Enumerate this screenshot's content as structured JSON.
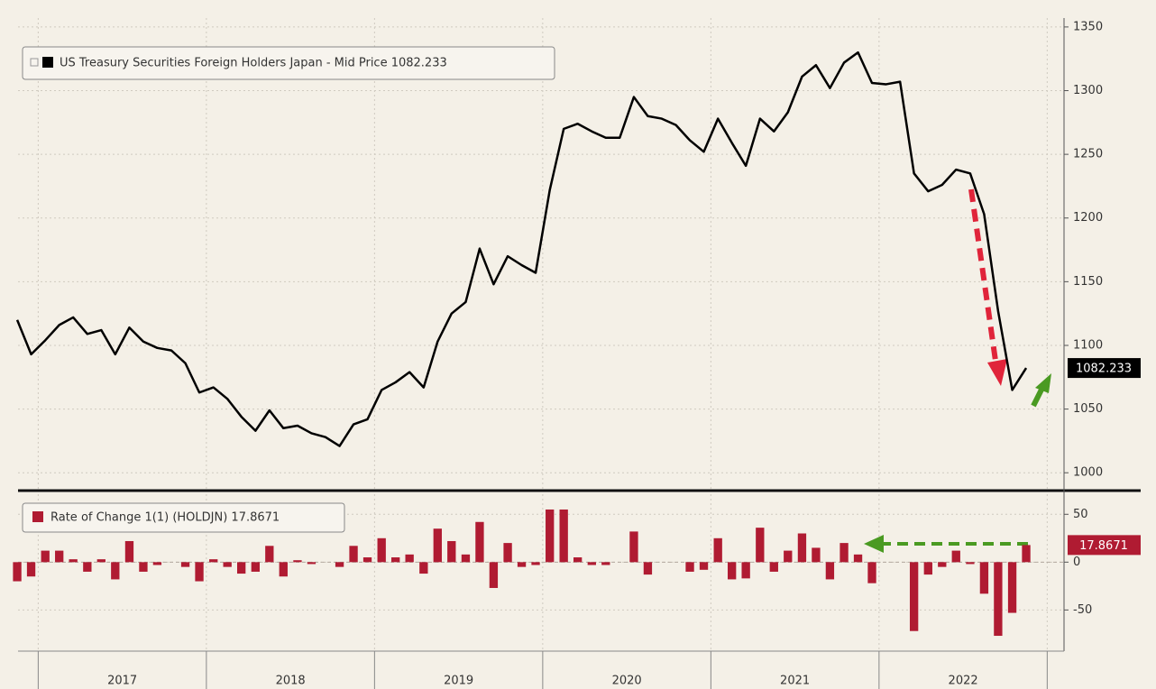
{
  "chart_data": [
    {
      "type": "line",
      "x": [
        2016.875,
        2016.958,
        2017.042,
        2017.125,
        2017.208,
        2017.292,
        2017.375,
        2017.458,
        2017.542,
        2017.625,
        2017.708,
        2017.792,
        2017.875,
        2017.958,
        2018.042,
        2018.125,
        2018.208,
        2018.292,
        2018.375,
        2018.458,
        2018.542,
        2018.625,
        2018.708,
        2018.792,
        2018.875,
        2018.958,
        2019.042,
        2019.125,
        2019.208,
        2019.292,
        2019.375,
        2019.458,
        2019.542,
        2019.625,
        2019.708,
        2019.792,
        2019.875,
        2019.958,
        2020.042,
        2020.125,
        2020.208,
        2020.292,
        2020.375,
        2020.458,
        2020.542,
        2020.625,
        2020.708,
        2020.792,
        2020.875,
        2020.958,
        2021.042,
        2021.125,
        2021.208,
        2021.292,
        2021.375,
        2021.458,
        2021.542,
        2021.625,
        2021.708,
        2021.792,
        2021.875,
        2021.958,
        2022.042,
        2022.125,
        2022.208,
        2022.292,
        2022.375,
        2022.458,
        2022.542,
        2022.625,
        2022.708,
        2022.792,
        2022.875
      ],
      "series": [
        {
          "name": "US Treasury Securities Foreign Holders Japan - Mid Price 1082.233",
          "last_label": "1082.233",
          "color": "#000000",
          "values": [
            1120,
            1093,
            1104,
            1116,
            1122,
            1109,
            1112,
            1093,
            1114,
            1103,
            1098,
            1096,
            1086,
            1063,
            1067,
            1058,
            1044,
            1033,
            1049,
            1035,
            1037,
            1031,
            1028,
            1021,
            1038,
            1042,
            1065,
            1071,
            1079,
            1067,
            1103,
            1125,
            1134,
            1176,
            1148,
            1170,
            1163,
            1157,
            1222,
            1270,
            1274,
            1268,
            1263,
            1263,
            1295,
            1280,
            1278,
            1273,
            1261,
            1252,
            1278,
            1259,
            1241,
            1278,
            1268,
            1283,
            1311,
            1320,
            1302,
            1322,
            1330,
            1306,
            1305,
            1307,
            1235,
            1221,
            1226,
            1238,
            1235,
            1203,
            1127,
            1065,
            1082.233
          ]
        }
      ],
      "xlim": [
        2016.88,
        2023.1
      ],
      "ylim": [
        986,
        1357
      ],
      "yticks": [
        1000,
        1050,
        1100,
        1150,
        1200,
        1250,
        1300,
        1350
      ],
      "grid": true
    },
    {
      "type": "bar",
      "x": [
        2016.875,
        2016.958,
        2017.042,
        2017.125,
        2017.208,
        2017.292,
        2017.375,
        2017.458,
        2017.542,
        2017.625,
        2017.708,
        2017.792,
        2017.875,
        2017.958,
        2018.042,
        2018.125,
        2018.208,
        2018.292,
        2018.375,
        2018.458,
        2018.542,
        2018.625,
        2018.708,
        2018.792,
        2018.875,
        2018.958,
        2019.042,
        2019.125,
        2019.208,
        2019.292,
        2019.375,
        2019.458,
        2019.542,
        2019.625,
        2019.708,
        2019.792,
        2019.875,
        2019.958,
        2020.042,
        2020.125,
        2020.208,
        2020.292,
        2020.375,
        2020.458,
        2020.542,
        2020.625,
        2020.708,
        2020.792,
        2020.875,
        2020.958,
        2021.042,
        2021.125,
        2021.208,
        2021.292,
        2021.375,
        2021.458,
        2021.542,
        2021.625,
        2021.708,
        2021.792,
        2021.875,
        2021.958,
        2022.042,
        2022.125,
        2022.208,
        2022.292,
        2022.375,
        2022.458,
        2022.542,
        2022.625,
        2022.708,
        2022.792,
        2022.875
      ],
      "series": [
        {
          "name": "Rate of Change 1(1) (HOLDJN) 17.8671",
          "last_label": "17.8671",
          "color": "#b01b32",
          "values": [
            -20,
            -15,
            12,
            12,
            3,
            -10,
            3,
            -18,
            22,
            -10,
            -3,
            0,
            -5,
            -20,
            3,
            -5,
            -12,
            -10,
            17,
            -15,
            2,
            -2,
            0,
            -5,
            17,
            5,
            25,
            5,
            8,
            -12,
            35,
            22,
            8,
            42,
            -27,
            20,
            -5,
            -3,
            55,
            55,
            5,
            -3,
            -3,
            0,
            32,
            -13,
            0,
            0,
            -10,
            -8,
            25,
            -18,
            -17,
            36,
            -10,
            12,
            30,
            15,
            -18,
            20,
            8,
            -22,
            0,
            0,
            -72,
            -13,
            -5,
            12,
            -2,
            -33,
            -77,
            -53,
            17.8671
          ]
        }
      ],
      "xlim": [
        2016.88,
        2023.1
      ],
      "ylim": [
        -93,
        71
      ],
      "yticks": [
        -50,
        0,
        50
      ],
      "xgrid": [
        2017,
        2018,
        2019,
        2020,
        2021,
        2022,
        2023
      ],
      "xticks": [
        {
          "value": 2017.5,
          "label": "2017"
        },
        {
          "value": 2018.5,
          "label": "2018"
        },
        {
          "value": 2019.5,
          "label": "2019"
        },
        {
          "value": 2020.5,
          "label": "2020"
        },
        {
          "value": 2021.5,
          "label": "2021"
        },
        {
          "value": 2022.5,
          "label": "2022"
        }
      ],
      "grid": true
    }
  ]
}
